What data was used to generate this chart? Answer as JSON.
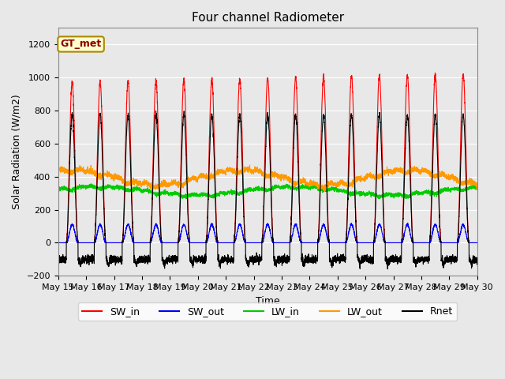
{
  "title": "Four channel Radiometer",
  "xlabel": "Time",
  "ylabel": "Solar Radiation (W/m2)",
  "annotation": "GT_met",
  "ylim": [
    -200,
    1300
  ],
  "yticks": [
    -200,
    0,
    200,
    400,
    600,
    800,
    1000,
    1200
  ],
  "num_days": 15,
  "points_per_day": 288,
  "SW_in_peak": 1000,
  "SW_out_peak": 120,
  "LW_in_base": 310,
  "LW_in_amp": 25,
  "LW_out_base": 390,
  "LW_out_amp": 45,
  "Rnet_peak": 780,
  "Rnet_night": -100,
  "colors": {
    "SW_in": "#ff0000",
    "SW_out": "#0000ff",
    "LW_in": "#00cc00",
    "LW_out": "#ff9900",
    "Rnet": "#000000"
  },
  "background_color": "#e8e8e8",
  "plot_bg_color": "#e8e8e8",
  "fig_bg_color": "#e8e8e8",
  "linewidth": 0.8,
  "grid_color": "#ffffff",
  "title_fontsize": 11,
  "label_fontsize": 9,
  "tick_fontsize": 8,
  "start_day": 15
}
